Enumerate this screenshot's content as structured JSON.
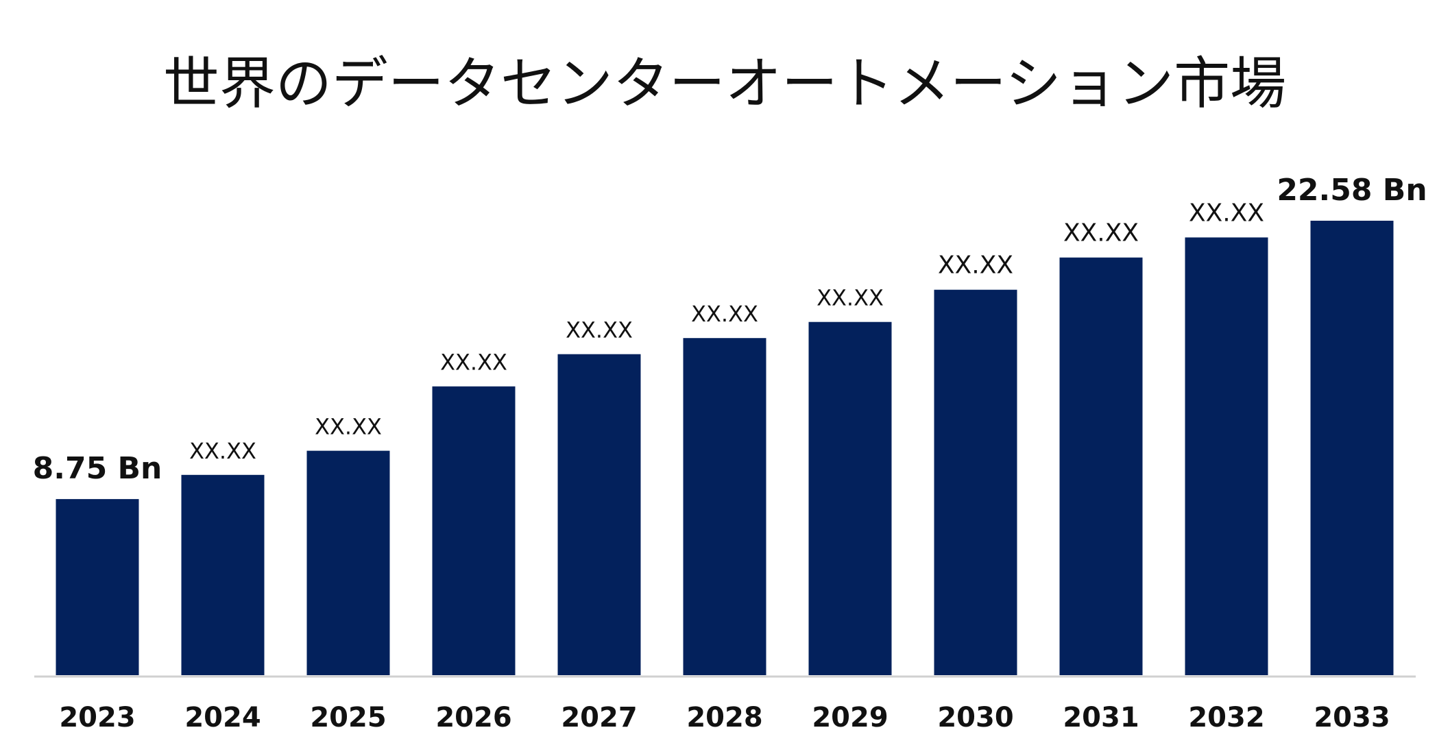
{
  "chart_data": {
    "type": "bar",
    "title": "世界のデータセンターオートメーション市場",
    "categories": [
      "2023",
      "2024",
      "2025",
      "2026",
      "2027",
      "2028",
      "2029",
      "2030",
      "2031",
      "2032",
      "2033"
    ],
    "values": [
      8.75,
      9.95,
      11.15,
      14.35,
      15.95,
      16.75,
      17.55,
      19.15,
      20.75,
      21.75,
      22.58
    ],
    "data_labels": [
      "8.75 Bn",
      "XX.XX",
      "XX.XX",
      "XX.XX",
      "XX.XX",
      "XX.XX",
      "XX.XX",
      "XX.XX",
      "XX.XX",
      "XX.XX",
      "22.58 Bn"
    ],
    "label_sizes": [
      "large",
      "small",
      "small",
      "small",
      "small",
      "small",
      "small",
      "medium",
      "medium",
      "medium",
      "large"
    ],
    "xlabel": "",
    "ylabel": "",
    "ylim": [
      0,
      30
    ],
    "grid": false,
    "legend": "none",
    "bar_color": "#03215c",
    "baseline_color": "#d0d0d0"
  }
}
